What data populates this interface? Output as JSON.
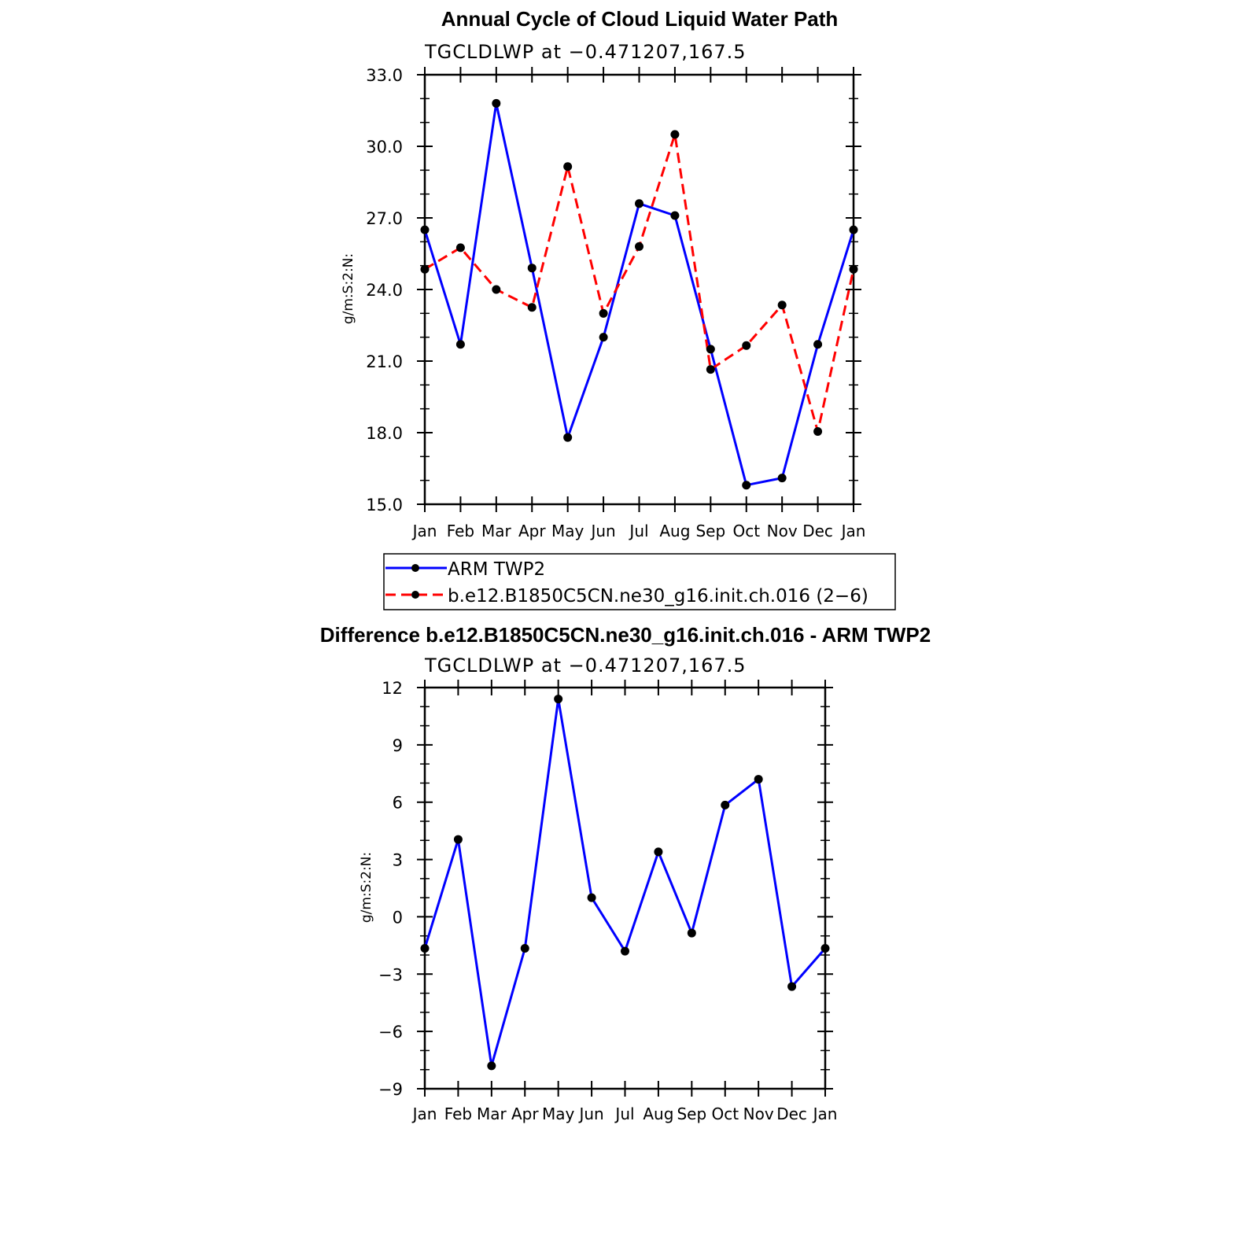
{
  "chart_data": [
    {
      "type": "line",
      "title": "Annual Cycle of Cloud Liquid Water Path",
      "subtitle": "TGCLDLWP at −0.471207,167.5",
      "xlabel": "",
      "ylabel": "g/m:S:2:N:",
      "categories": [
        "Jan",
        "Feb",
        "Mar",
        "Apr",
        "May",
        "Jun",
        "Jul",
        "Aug",
        "Sep",
        "Oct",
        "Nov",
        "Dec",
        "Jan"
      ],
      "ylim": [
        15.0,
        33.0
      ],
      "yticks": [
        "15.0",
        "18.0",
        "21.0",
        "24.0",
        "27.0",
        "30.0",
        "33.0"
      ],
      "grid": false,
      "legend_position": "bottom",
      "series": [
        {
          "name": "ARM TWP2",
          "color": "#0000ff",
          "dash": "solid",
          "values": [
            26.5,
            21.7,
            31.8,
            24.9,
            17.8,
            22.0,
            27.6,
            27.1,
            21.5,
            15.8,
            16.1,
            21.7,
            26.5
          ]
        },
        {
          "name": "b.e12.B1850C5CN.ne30_g16.init.ch.016 (2−6)",
          "color": "#ff0000",
          "dash": "dashed",
          "values": [
            24.85,
            25.75,
            24.0,
            23.25,
            29.15,
            23.0,
            25.8,
            30.5,
            20.65,
            21.65,
            23.35,
            18.05,
            24.85
          ]
        }
      ]
    },
    {
      "type": "line",
      "title": "Difference b.e12.B1850C5CN.ne30_g16.init.ch.016 - ARM TWP2",
      "subtitle": "TGCLDLWP at −0.471207,167.5",
      "xlabel": "",
      "ylabel": "g/m:S:2:N:",
      "categories": [
        "Jan",
        "Feb",
        "Mar",
        "Apr",
        "May",
        "Jun",
        "Jul",
        "Aug",
        "Sep",
        "Oct",
        "Nov",
        "Dec",
        "Jan"
      ],
      "ylim": [
        -9,
        12
      ],
      "yticks": [
        "−9",
        "−6",
        "−3",
        "0",
        "3",
        "6",
        "9",
        "12"
      ],
      "grid": false,
      "series": [
        {
          "color": "#0000ff",
          "dash": "solid",
          "values": [
            -1.65,
            4.05,
            -7.8,
            -1.65,
            11.4,
            1.0,
            -1.8,
            3.4,
            -0.85,
            5.85,
            7.2,
            -3.65,
            -1.65
          ]
        }
      ]
    }
  ]
}
